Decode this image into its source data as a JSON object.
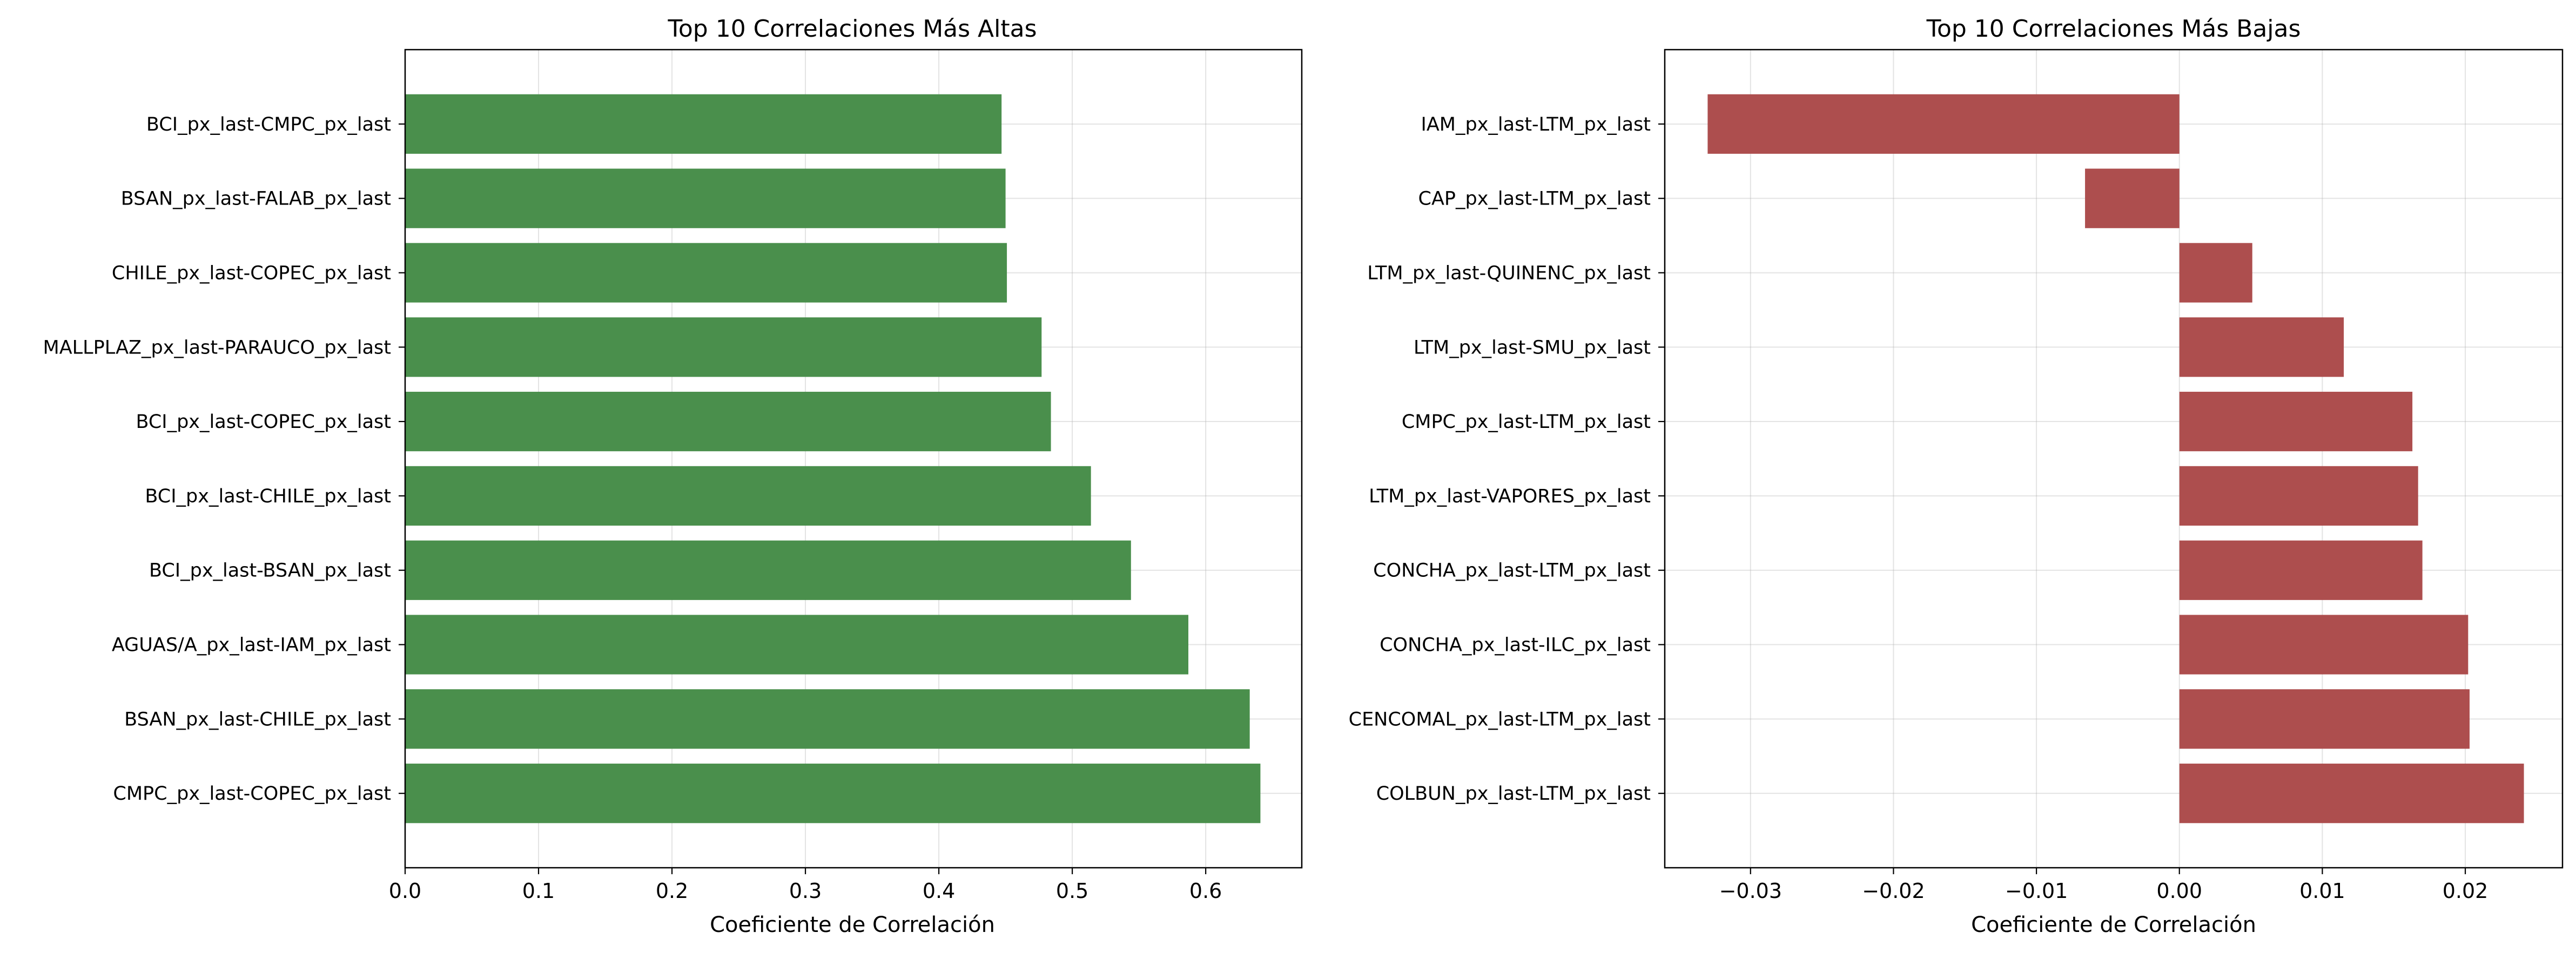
{
  "chart_data": [
    {
      "type": "bar",
      "orientation": "horizontal",
      "title": "Top 10 Correlaciones Más Altas",
      "xlabel": "Coeficiente de Correlación",
      "ylabel": "",
      "categories": [
        "CMPC_px_last-COPEC_px_last",
        "BSAN_px_last-CHILE_px_last",
        "AGUAS/A_px_last-IAM_px_last",
        "BCI_px_last-BSAN_px_last",
        "BCI_px_last-CHILE_px_last",
        "BCI_px_last-COPEC_px_last",
        "MALLPLAZ_px_last-PARAUCO_px_last",
        "CHILE_px_last-COPEC_px_last",
        "BSAN_px_last-FALAB_px_last",
        "BCI_px_last-CMPC_px_last"
      ],
      "values": [
        0.641,
        0.633,
        0.587,
        0.544,
        0.514,
        0.484,
        0.477,
        0.451,
        0.45,
        0.447
      ],
      "xlim": [
        0.0,
        0.672
      ],
      "xticks": [
        0.0,
        0.1,
        0.2,
        0.3,
        0.4,
        0.5,
        0.6
      ],
      "xtick_labels": [
        "0.0",
        "0.1",
        "0.2",
        "0.3",
        "0.4",
        "0.5",
        "0.6"
      ],
      "color": "#4a8f4c",
      "grid": true
    },
    {
      "type": "bar",
      "orientation": "horizontal",
      "title": "Top 10 Correlaciones Más Bajas",
      "xlabel": "Coeficiente de Correlación",
      "ylabel": "",
      "categories": [
        "COLBUN_px_last-LTM_px_last",
        "CENCOMAL_px_last-LTM_px_last",
        "CONCHA_px_last-ILC_px_last",
        "CONCHA_px_last-LTM_px_last",
        "LTM_px_last-VAPORES_px_last",
        "CMPC_px_last-LTM_px_last",
        "LTM_px_last-SMU_px_last",
        "LTM_px_last-QUINENC_px_last",
        "CAP_px_last-LTM_px_last",
        "IAM_px_last-LTM_px_last"
      ],
      "values": [
        0.0241,
        0.0203,
        0.0202,
        0.017,
        0.0167,
        0.0163,
        0.0115,
        0.0051,
        -0.0066,
        -0.033
      ],
      "xlim": [
        -0.036,
        0.0268
      ],
      "xticks": [
        -0.03,
        -0.02,
        -0.01,
        0.0,
        0.01,
        0.02
      ],
      "xtick_labels": [
        "−0.03",
        "−0.02",
        "−0.01",
        "0.00",
        "0.01",
        "0.02"
      ],
      "color": "#ad4e4e",
      "grid": true
    }
  ]
}
